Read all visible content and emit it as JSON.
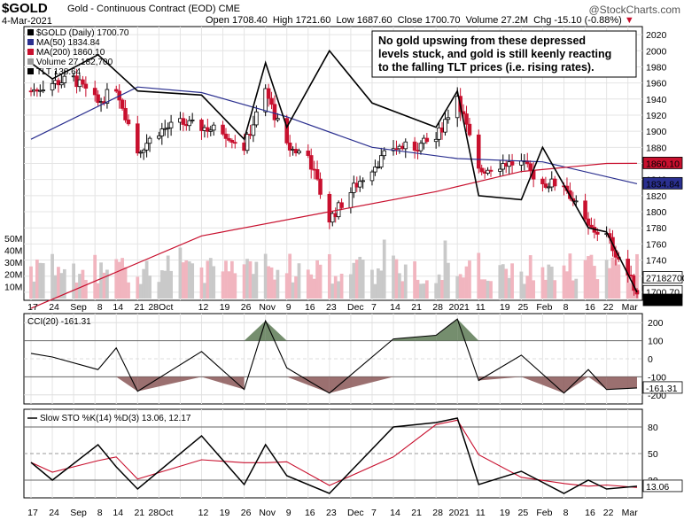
{
  "header": {
    "symbol": "$GOLD",
    "name": "Gold - Continuous Contract (EOD) CME",
    "date": "4-Mar-2021",
    "open_label": "Open",
    "open": "1708.40",
    "high_label": "High",
    "high": "1721.60",
    "low_label": "Low",
    "low": "1687.60",
    "close_label": "Close",
    "close": "1700.70",
    "volume_label": "Volume",
    "volume": "27.2M",
    "chg_label": "Chg",
    "chg": "-15.10 (-0.88%)",
    "brand": "@StockCharts.com"
  },
  "annotation": {
    "lines": [
      "No gold upswing from these depressed",
      "levels stuck, and gold is still keenly reacting",
      "to the falling TLT prices (i.e. rising rates)."
    ]
  },
  "chart_data": [
    {
      "type": "candlestick",
      "title": "$GOLD (Daily) 1700.70",
      "legend": [
        {
          "name": "$GOLD (Daily) 1700.70",
          "color": "#000000"
        },
        {
          "name": "MA(50) 1834.84",
          "color": "#2a2f8f"
        },
        {
          "name": "MA(200) 1860.10",
          "color": "#c8102e"
        },
        {
          "name": "Volume 27,182,700",
          "color": "#999999"
        },
        {
          "name": "TLT 138.64",
          "color": "#000000"
        }
      ],
      "x_tick_labels": [
        "17",
        "24",
        "Sep",
        "8",
        "14",
        "21",
        "28Oct",
        "12",
        "19",
        "26",
        "Nov",
        "9",
        "16",
        "23",
        "Dec",
        "7",
        "14",
        "21",
        "28",
        "2021",
        "11",
        "19",
        "25",
        "Feb",
        "8",
        "16",
        "22",
        "Mar"
      ],
      "y_ticks": [
        1700,
        1720,
        1740,
        1760,
        1780,
        1800,
        1820,
        1840,
        1860,
        1880,
        1900,
        1920,
        1940,
        1960,
        1980,
        2000,
        2020
      ],
      "ylim": [
        1690,
        2030
      ],
      "volume_ticks": [
        "10M",
        "20M",
        "30M",
        "40M",
        "50M"
      ],
      "price_path": [
        [
          "2020-08-17",
          1950
        ],
        [
          "2020-08-24",
          1960
        ],
        [
          "2020-08-31",
          1965
        ],
        [
          "2020-09-08",
          1935
        ],
        [
          "2020-09-14",
          1955
        ],
        [
          "2020-09-21",
          1875
        ],
        [
          "2020-09-28",
          1900
        ],
        [
          "2020-10-05",
          1910
        ],
        [
          "2020-10-12",
          1905
        ],
        [
          "2020-10-19",
          1900
        ],
        [
          "2020-10-26",
          1880
        ],
        [
          "2020-11-02",
          1950
        ],
        [
          "2020-11-09",
          1880
        ],
        [
          "2020-11-16",
          1870
        ],
        [
          "2020-11-23",
          1790
        ],
        [
          "2020-12-01",
          1830
        ],
        [
          "2020-12-07",
          1855
        ],
        [
          "2020-12-14",
          1880
        ],
        [
          "2020-12-21",
          1880
        ],
        [
          "2020-12-28",
          1890
        ],
        [
          "2021-01-04",
          1945
        ],
        [
          "2021-01-11",
          1850
        ],
        [
          "2021-01-19",
          1860
        ],
        [
          "2021-01-25",
          1860
        ],
        [
          "2021-02-01",
          1835
        ],
        [
          "2021-02-08",
          1835
        ],
        [
          "2021-02-16",
          1780
        ],
        [
          "2021-02-22",
          1770
        ],
        [
          "2021-03-04",
          1700.7
        ]
      ],
      "ma50_path": [
        [
          "2020-08-17",
          1890
        ],
        [
          "2020-09-21",
          1955
        ],
        [
          "2020-10-12",
          1948
        ],
        [
          "2020-11-09",
          1918
        ],
        [
          "2020-12-07",
          1880
        ],
        [
          "2021-01-04",
          1866
        ],
        [
          "2021-02-01",
          1862
        ],
        [
          "2021-03-04",
          1834.84
        ]
      ],
      "ma200_path": [
        [
          "2020-08-17",
          1680
        ],
        [
          "2020-10-12",
          1770
        ],
        [
          "2020-11-23",
          1800
        ],
        [
          "2020-12-28",
          1825
        ],
        [
          "2021-01-25",
          1850
        ],
        [
          "2021-02-22",
          1860
        ],
        [
          "2021-03-04",
          1860.1
        ]
      ],
      "tlt_path": [
        [
          "2020-08-17",
          1985
        ],
        [
          "2020-08-24",
          1965
        ],
        [
          "2020-09-08",
          1995
        ],
        [
          "2020-09-21",
          1950
        ],
        [
          "2020-10-12",
          1945
        ],
        [
          "2020-10-26",
          1890
        ],
        [
          "2020-11-02",
          1985
        ],
        [
          "2020-11-09",
          1905
        ],
        [
          "2020-11-23",
          2000
        ],
        [
          "2020-12-07",
          1935
        ],
        [
          "2020-12-28",
          1905
        ],
        [
          "2021-01-04",
          1950
        ],
        [
          "2021-01-11",
          1820
        ],
        [
          "2021-01-25",
          1815
        ],
        [
          "2021-02-01",
          1880
        ],
        [
          "2021-02-16",
          1780
        ],
        [
          "2021-02-22",
          1775
        ],
        [
          "2021-03-04",
          1700
        ]
      ],
      "last_values": {
        "ma200": "1860.10",
        "ma50": "1834.84",
        "volume": "27182700",
        "close": "1700.70",
        "tlt": "138.64"
      }
    },
    {
      "type": "line",
      "title": "CCI(20) -161.31",
      "y_ticks": [
        "200",
        "100",
        "0",
        "-100",
        "-200"
      ],
      "ylim": [
        -250,
        250
      ],
      "last_value": "-161.31",
      "values": [
        [
          "2020-08-17",
          30
        ],
        [
          "2020-08-24",
          10
        ],
        [
          "2020-09-08",
          -60
        ],
        [
          "2020-09-14",
          60
        ],
        [
          "2020-09-21",
          -180
        ],
        [
          "2020-10-12",
          40
        ],
        [
          "2020-10-26",
          -170
        ],
        [
          "2020-11-02",
          210
        ],
        [
          "2020-11-09",
          -50
        ],
        [
          "2020-11-23",
          -190
        ],
        [
          "2020-12-14",
          110
        ],
        [
          "2020-12-21",
          120
        ],
        [
          "2020-12-28",
          130
        ],
        [
          "2021-01-04",
          220
        ],
        [
          "2021-01-11",
          -120
        ],
        [
          "2021-01-25",
          20
        ],
        [
          "2021-02-08",
          -190
        ],
        [
          "2021-02-16",
          -60
        ],
        [
          "2021-02-22",
          -170
        ],
        [
          "2021-03-04",
          -161.31
        ]
      ]
    },
    {
      "type": "line",
      "title": "Slow STO %K(14) %D(3) 13.06, 12.17",
      "series": [
        {
          "name": "%K(14)",
          "color": "#000000",
          "last_value": "13.06"
        },
        {
          "name": "%D(3)",
          "color": "#c8102e",
          "last_value": "12.17"
        }
      ],
      "y_ticks": [
        "80",
        "50",
        "20"
      ],
      "ylim": [
        0,
        100
      ],
      "k_values": [
        [
          "2020-08-17",
          40
        ],
        [
          "2020-08-24",
          20
        ],
        [
          "2020-09-08",
          60
        ],
        [
          "2020-09-14",
          35
        ],
        [
          "2020-09-21",
          10
        ],
        [
          "2020-10-12",
          70
        ],
        [
          "2020-10-26",
          15
        ],
        [
          "2020-11-02",
          60
        ],
        [
          "2020-11-09",
          25
        ],
        [
          "2020-11-23",
          5
        ],
        [
          "2020-12-14",
          80
        ],
        [
          "2020-12-28",
          85
        ],
        [
          "2021-01-04",
          90
        ],
        [
          "2021-01-11",
          15
        ],
        [
          "2021-01-25",
          30
        ],
        [
          "2021-02-08",
          5
        ],
        [
          "2021-02-16",
          20
        ],
        [
          "2021-02-22",
          10
        ],
        [
          "2021-03-04",
          13.06
        ]
      ]
    }
  ]
}
